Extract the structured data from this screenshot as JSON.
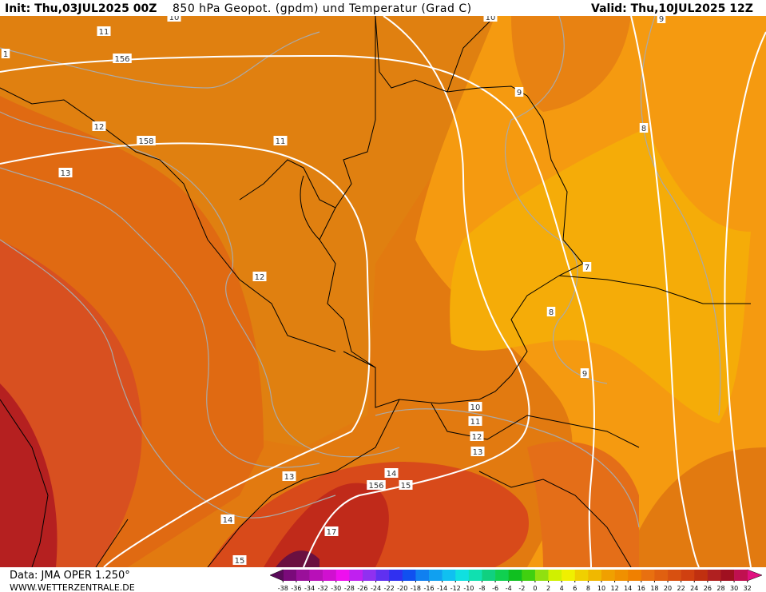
{
  "header": {
    "init": "Init: Thu,03JUL2025 00Z",
    "title": "850 hPa Geopot. (gpdm) und Temperatur (Grad C)",
    "valid": "Valid: Thu,10JUL2025 12Z"
  },
  "contour_labels": [
    10,
    10,
    9,
    11,
    1,
    156,
    9,
    12,
    158,
    11,
    8,
    13,
    12,
    7,
    8,
    9,
    10,
    11,
    12,
    13,
    13,
    14,
    156,
    15,
    14,
    17,
    15
  ],
  "colorbar": {
    "levels": [
      -38,
      -36,
      -34,
      -32,
      -30,
      -28,
      -26,
      -24,
      -22,
      -20,
      -18,
      -16,
      -14,
      -12,
      -10,
      -8,
      -6,
      -4,
      -2,
      0,
      2,
      4,
      6,
      8,
      10,
      12,
      14,
      16,
      18,
      20,
      22,
      24,
      26,
      28,
      30,
      32
    ],
    "colors": [
      "#5a0a5a",
      "#7a0a7a",
      "#9a109a",
      "#b810b8",
      "#d010d0",
      "#ee10ee",
      "#c020f0",
      "#9030f0",
      "#6030f0",
      "#3030f0",
      "#1050f0",
      "#1080f0",
      "#10a0f0",
      "#10c0f0",
      "#10e0e0",
      "#10e0b0",
      "#10d080",
      "#10d050",
      "#10c020",
      "#40d010",
      "#90e010",
      "#d0f000",
      "#f0f000",
      "#f0d000",
      "#f0b800",
      "#f0a000",
      "#f09000",
      "#f08000",
      "#e87010",
      "#e06010",
      "#d85010",
      "#d04010",
      "#c03010",
      "#b02020",
      "#a01020",
      "#c01050",
      "#e01080"
    ]
  },
  "footer": {
    "source": "Data: JMA OPER 1.250°",
    "site": "WWW.WETTERZENTRALE.DE"
  }
}
